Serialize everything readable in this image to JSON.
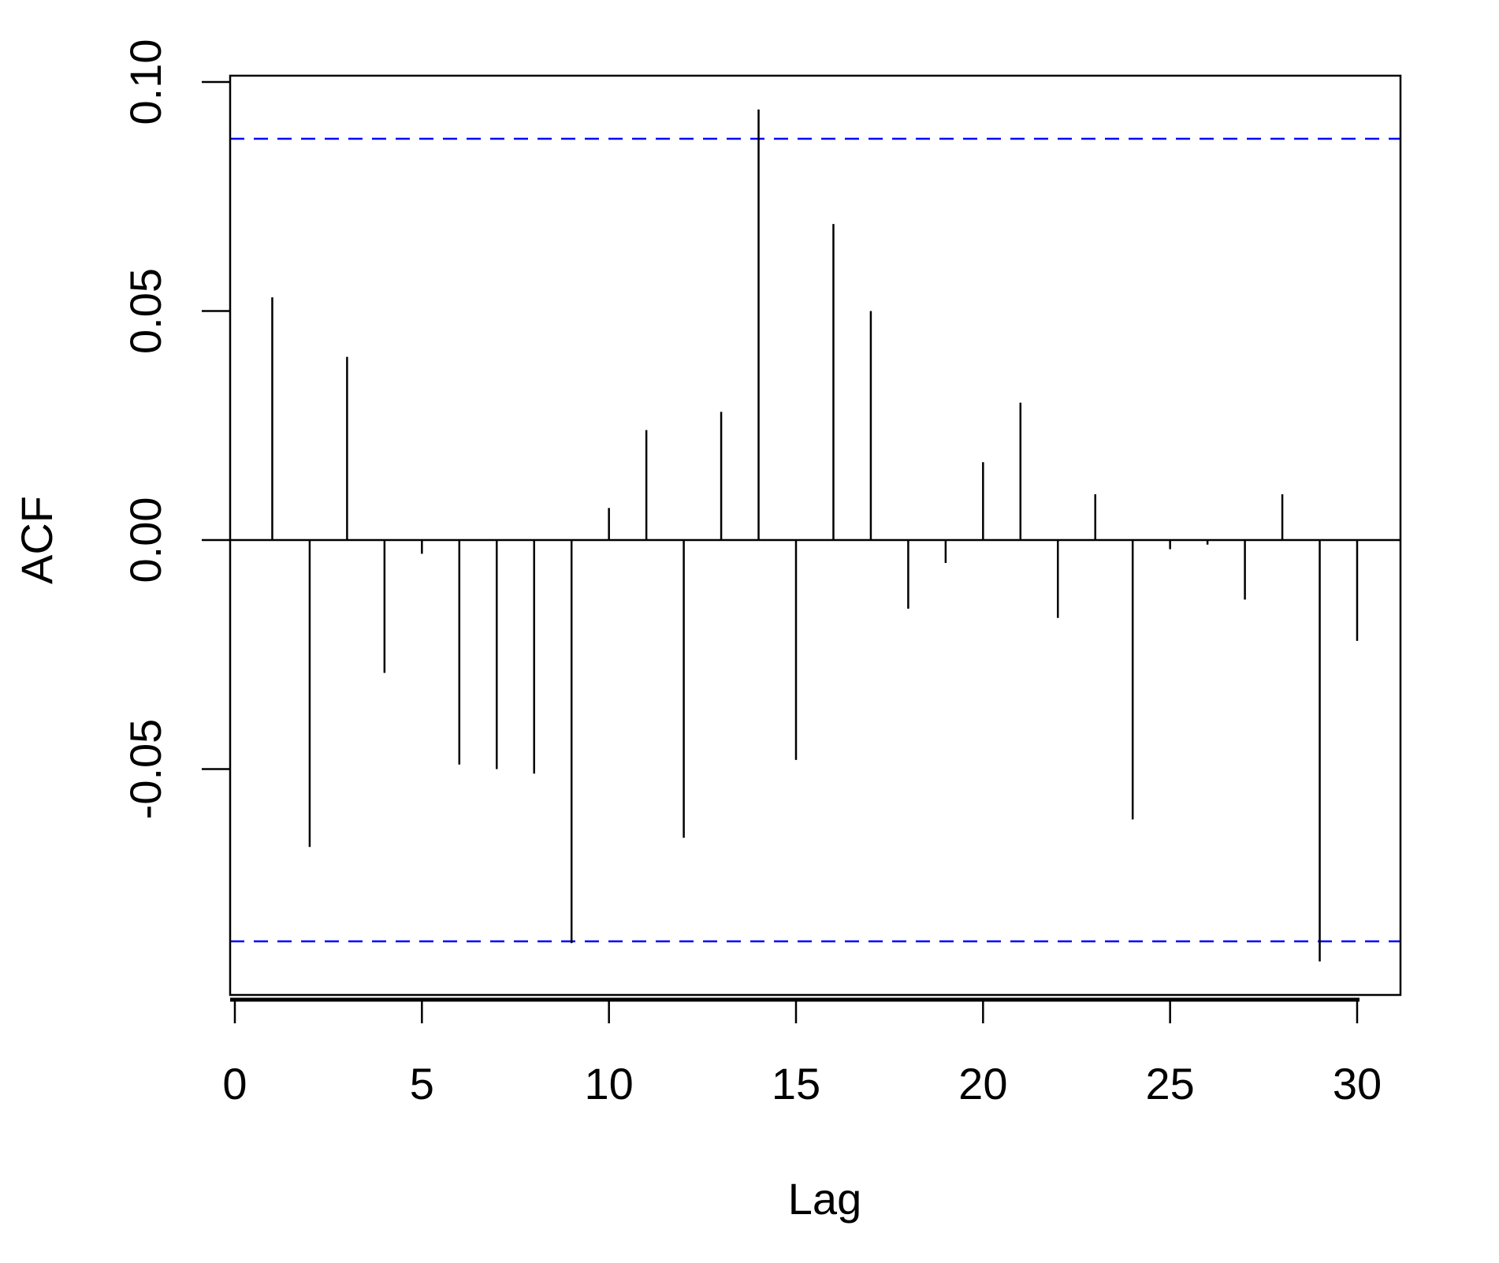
{
  "chart_data": {
    "type": "bar",
    "style": "acf-spikes",
    "xlabel": "Lag",
    "ylabel": "ACF",
    "xlim": [
      0,
      31
    ],
    "ylim": [
      -0.1,
      0.1
    ],
    "x_ticks": [
      0,
      5,
      10,
      15,
      20,
      25,
      30
    ],
    "x_tick_labels": [
      "0",
      "5",
      "10",
      "15",
      "20",
      "25",
      "30"
    ],
    "y_ticks": [
      -0.05,
      0.0,
      0.05,
      0.1
    ],
    "y_tick_labels": [
      "-0.05",
      "0.00",
      "0.05",
      "0.10"
    ],
    "grid": false,
    "legend": "none",
    "confidence_bounds": [
      0.0876,
      -0.0876
    ],
    "colors": {
      "spike": "#000000",
      "zero_line": "#000000",
      "bounds": "#0000ff",
      "frame": "#000000"
    },
    "series": [
      {
        "lags": [
          1,
          2,
          3,
          4,
          5,
          6,
          7,
          8,
          9,
          10,
          11,
          12,
          13,
          14,
          15,
          16,
          17,
          18,
          19,
          20,
          21,
          22,
          23,
          24,
          25,
          26,
          27,
          28,
          29,
          30
        ],
        "values": [
          0.053,
          -0.067,
          0.04,
          -0.029,
          -0.003,
          -0.049,
          -0.05,
          -0.051,
          -0.088,
          0.007,
          0.024,
          -0.065,
          0.028,
          0.094,
          -0.048,
          0.069,
          0.05,
          -0.015,
          -0.005,
          0.017,
          0.03,
          -0.017,
          0.01,
          -0.061,
          -0.002,
          -0.001,
          -0.013,
          0.01,
          -0.092,
          -0.022
        ]
      }
    ]
  }
}
